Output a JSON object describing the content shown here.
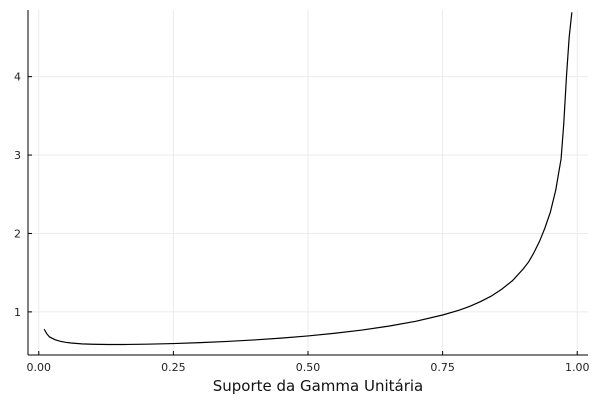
{
  "chart_data": {
    "type": "line",
    "xlabel": "Suporte da Gamma Unitária",
    "ylabel": "",
    "xlim": [
      -0.02,
      1.02
    ],
    "ylim": [
      0.45,
      4.85
    ],
    "grid": true,
    "legend": "none",
    "xticks": [
      0.0,
      0.25,
      0.5,
      0.75,
      1.0
    ],
    "xtick_labels": [
      "0.00",
      "0.25",
      "0.50",
      "0.75",
      "1.00"
    ],
    "yticks": [
      1,
      2,
      3,
      4
    ],
    "ytick_labels": [
      "1",
      "2",
      "3",
      "4"
    ],
    "series": [
      {
        "color": "#000000",
        "x": [
          0.01,
          0.015,
          0.02,
          0.03,
          0.04,
          0.05,
          0.06,
          0.08,
          0.1,
          0.13,
          0.16,
          0.2,
          0.25,
          0.3,
          0.35,
          0.4,
          0.45,
          0.5,
          0.55,
          0.6,
          0.65,
          0.7,
          0.75,
          0.78,
          0.8,
          0.82,
          0.84,
          0.86,
          0.88,
          0.9,
          0.91,
          0.92,
          0.93,
          0.94,
          0.95,
          0.96,
          0.965,
          0.97,
          0.975,
          0.98,
          0.985,
          0.99
        ],
        "y": [
          0.78,
          0.72,
          0.68,
          0.645,
          0.625,
          0.612,
          0.603,
          0.592,
          0.587,
          0.584,
          0.584,
          0.588,
          0.596,
          0.608,
          0.623,
          0.642,
          0.665,
          0.693,
          0.727,
          0.768,
          0.818,
          0.88,
          0.96,
          1.02,
          1.07,
          1.13,
          1.2,
          1.29,
          1.4,
          1.55,
          1.64,
          1.76,
          1.9,
          2.07,
          2.27,
          2.55,
          2.75,
          2.95,
          3.4,
          4.0,
          4.5,
          4.82
        ]
      }
    ]
  }
}
